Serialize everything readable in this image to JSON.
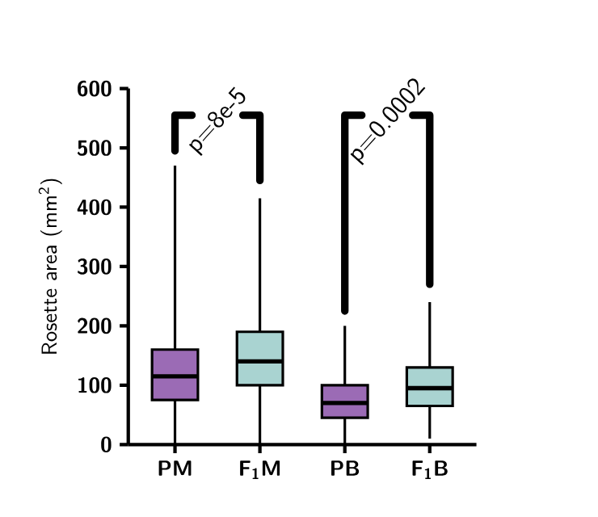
{
  "chart_data": {
    "type": "box",
    "ylabel": "Rosette area (mm$^{2}$)",
    "categories": [
      "PM",
      "F$_{1}$M",
      "PB",
      "F$_{1}$B"
    ],
    "colors": [
      "#9b6bb5",
      "#a9d3d1",
      "#9b6bb5",
      "#a9d3d1"
    ],
    "boxes": [
      {
        "low": 0,
        "q1": 75,
        "median": 115,
        "q3": 160,
        "high": 470
      },
      {
        "low": 0,
        "q1": 100,
        "median": 140,
        "q3": 190,
        "high": 415
      },
      {
        "low": 0,
        "q1": 45,
        "median": 70,
        "q3": 100,
        "high": 200
      },
      {
        "low": 10,
        "q1": 65,
        "median": 95,
        "q3": 130,
        "high": 240
      }
    ],
    "ylim": [
      0,
      600
    ],
    "yticks": [
      0,
      100,
      200,
      300,
      400,
      500,
      600
    ],
    "annotations": [
      "p=8e-5",
      "p=0.0002"
    ]
  }
}
